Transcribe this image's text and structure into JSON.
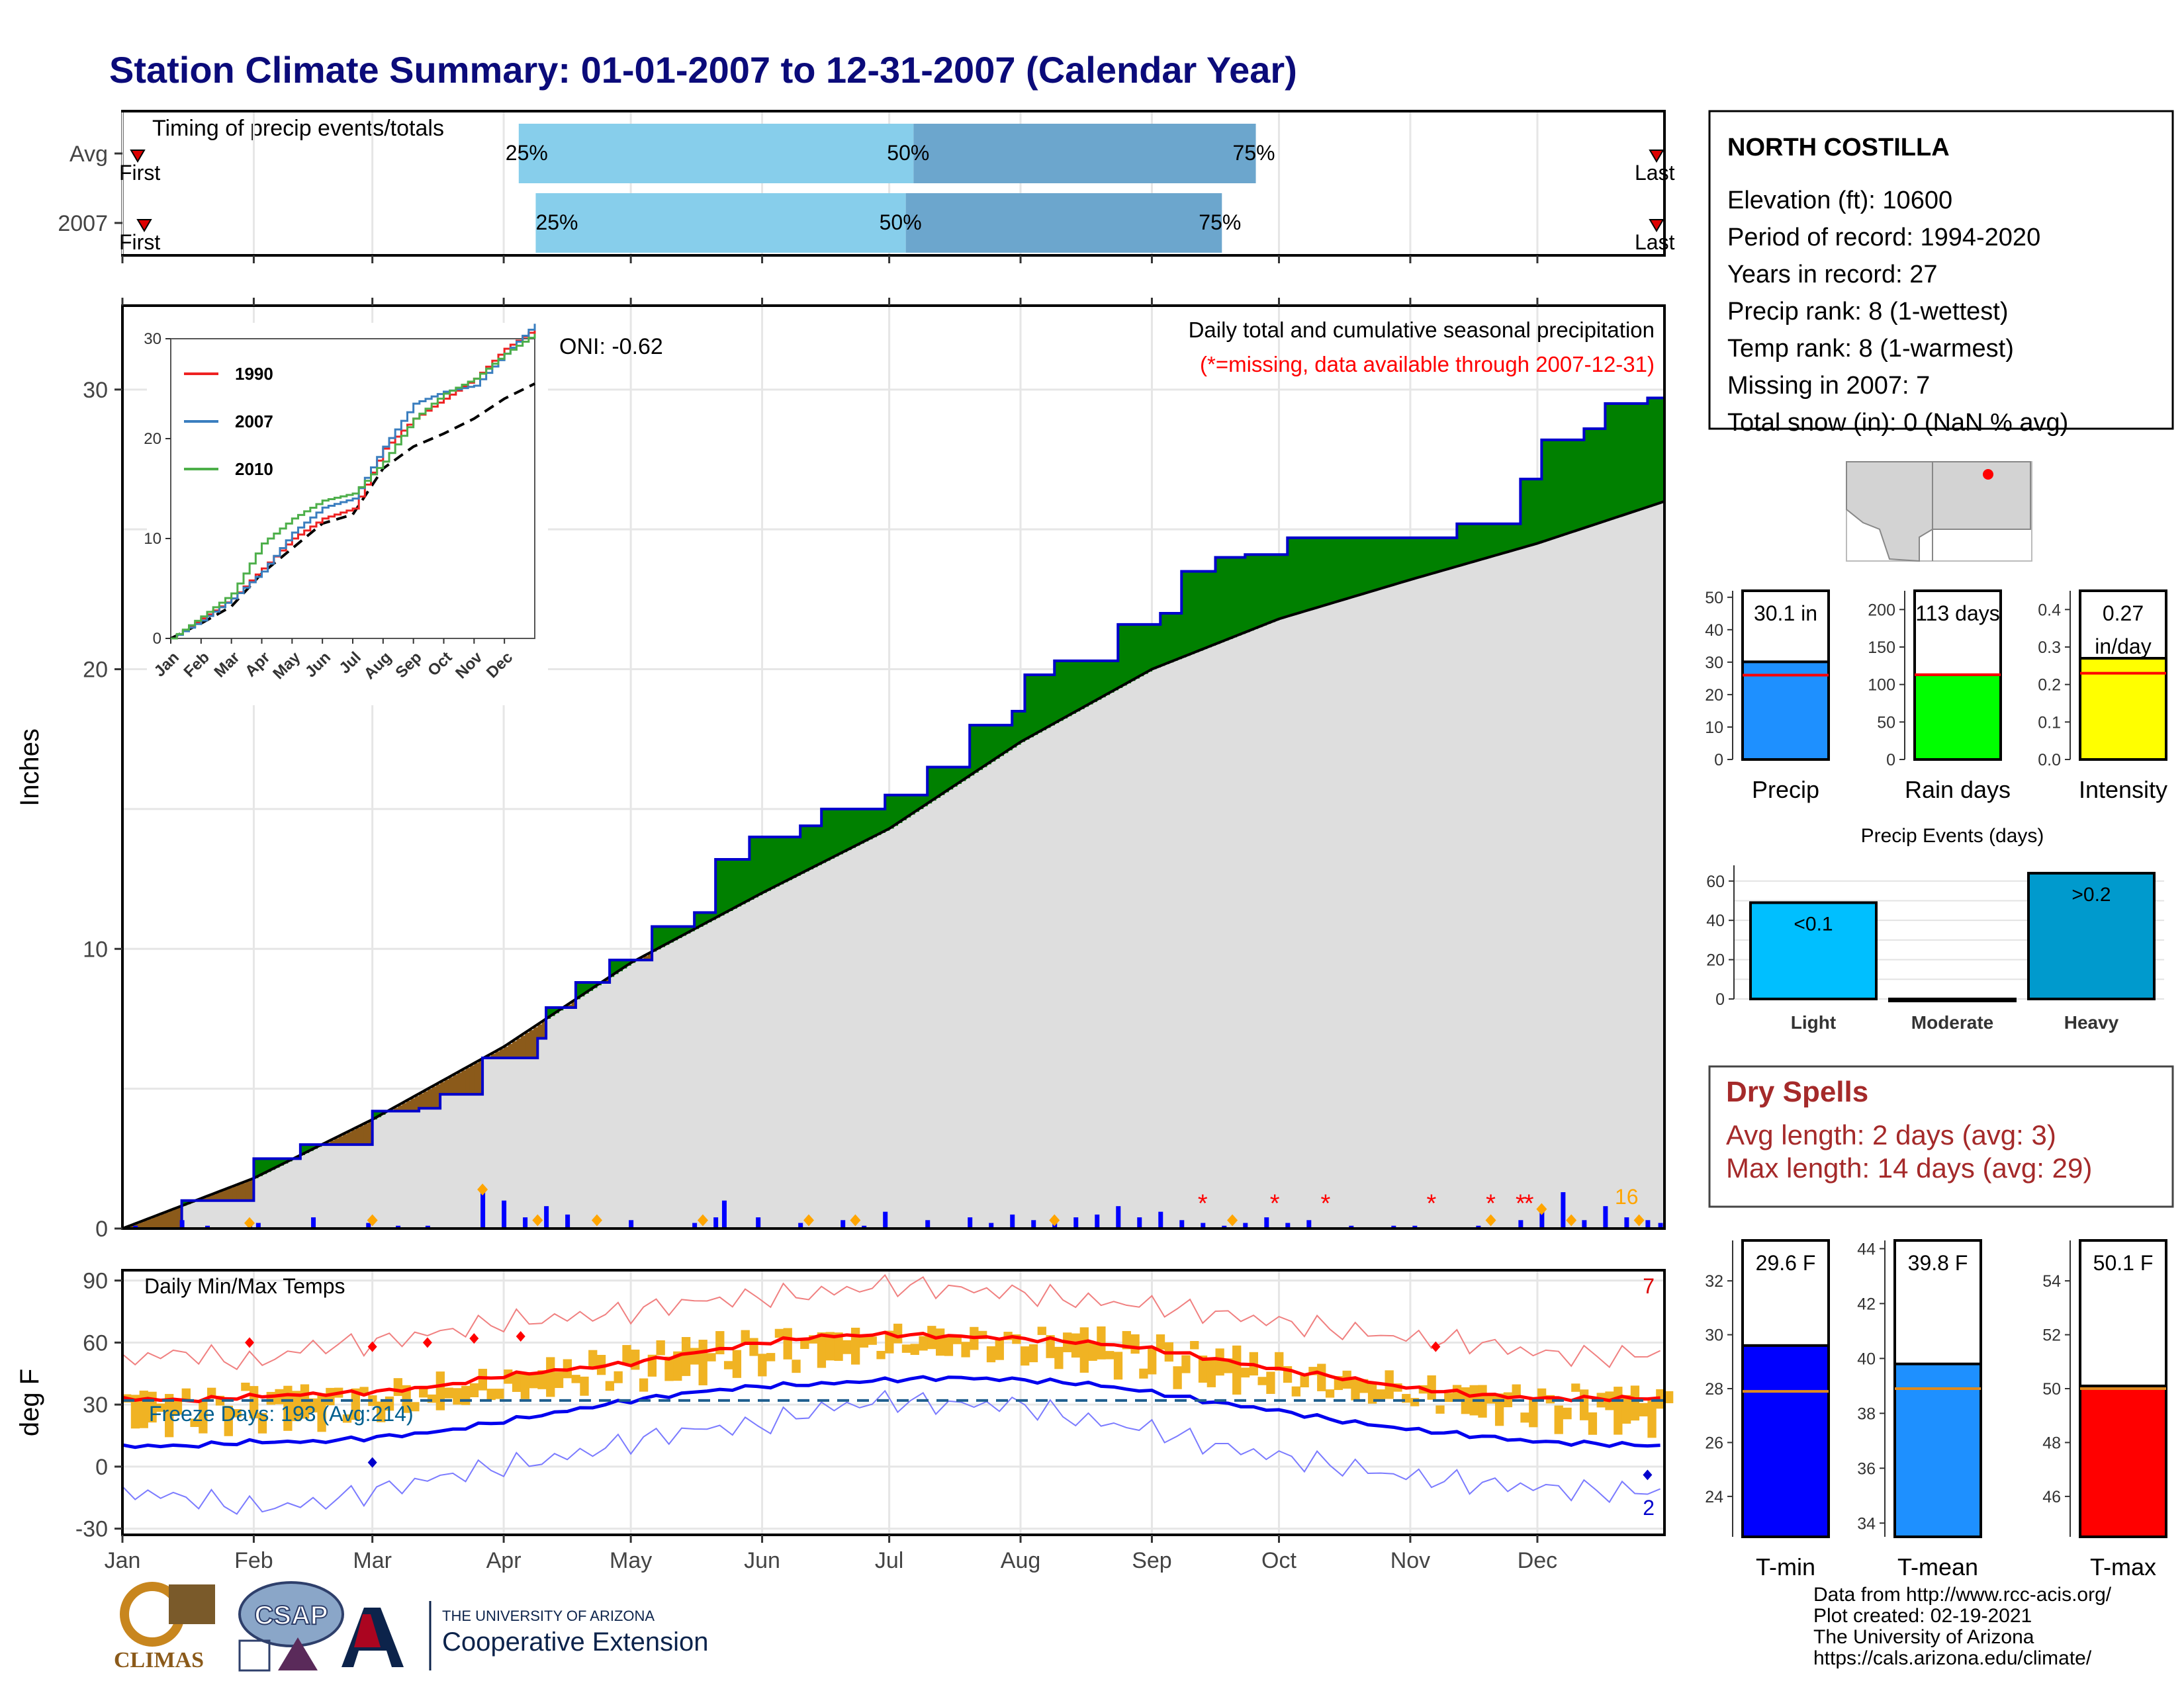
{
  "title": "Station Climate Summary: 01-01-2007 to 12-31-2007 (Calendar Year)",
  "timing": {
    "label": "Timing of precip events/totals",
    "rows": [
      {
        "name": "Avg",
        "first": "First",
        "last": "Last",
        "p25": 0.257,
        "p50": 0.513,
        "p75": 0.735
      },
      {
        "name": "2007",
        "first": "First",
        "last": "Last",
        "p25": 0.268,
        "p50": 0.508,
        "p75": 0.713
      }
    ],
    "p25_label": "25%",
    "p50_label": "50%",
    "p75_label": "75%"
  },
  "station": {
    "name": "NORTH COSTILLA",
    "lines": [
      "Elevation (ft): 10600",
      "Period of record: 1994-2020",
      "Years in record: 27",
      "Precip rank: 8 (1-wettest)",
      "Temp rank: 8 (1-warmest)",
      "Missing in 2007: 7",
      "Total snow (in): 0 (NaN % avg)"
    ]
  },
  "months": [
    "Jan",
    "Feb",
    "Mar",
    "Apr",
    "May",
    "Jun",
    "Jul",
    "Aug",
    "Sep",
    "Oct",
    "Nov",
    "Dec"
  ],
  "precip": {
    "ylabel": "Inches",
    "oni": "ONI: -0.62",
    "subtitle": "Daily total and cumulative seasonal precipitation",
    "missing_note": "(*=missing, data available through 2007-12-31)",
    "count_label": "16",
    "colors": {
      "above": "#008000",
      "below": "#8b5a1a",
      "normal": "#dedede",
      "cum_line": "#0000cc",
      "bars": "#0000ff",
      "markers": "#ffa500",
      "missing": "#ff0000"
    },
    "chart_data": {
      "type": "area",
      "x_doy": [
        0,
        14,
        31,
        42,
        59,
        70,
        75,
        85,
        98,
        100,
        107,
        115,
        125,
        135,
        140,
        148,
        160,
        165,
        180,
        190,
        200,
        210,
        213,
        220,
        235,
        245,
        250,
        258,
        265,
        275,
        290,
        300,
        315,
        330,
        335,
        345,
        350,
        360,
        364
      ],
      "cumulative_2007": [
        0,
        1.0,
        2.5,
        3.0,
        4.2,
        4.3,
        4.8,
        6.1,
        6.8,
        7.9,
        8.8,
        9.6,
        10.8,
        11.3,
        13.2,
        14.0,
        14.4,
        15.0,
        15.5,
        16.5,
        18.0,
        18.5,
        19.8,
        20.3,
        21.6,
        22.0,
        23.5,
        24.0,
        24.1,
        24.7,
        24.7,
        24.7,
        25.2,
        26.8,
        28.2,
        28.6,
        29.5,
        29.7,
        30.1
      ],
      "x_avg_doy": [
        0,
        31,
        59,
        90,
        120,
        151,
        181,
        212,
        243,
        273,
        304,
        334,
        364
      ],
      "cumulative_avg": [
        0,
        1.8,
        3.9,
        6.5,
        9.5,
        12.0,
        14.3,
        17.4,
        20.0,
        21.8,
        23.2,
        24.5,
        26.0
      ],
      "ylim": [
        0,
        33
      ],
      "yticks": [
        0,
        10,
        20,
        30
      ],
      "daily_doy": [
        3,
        14,
        20,
        30,
        32,
        45,
        58,
        65,
        72,
        85,
        90,
        95,
        100,
        105,
        120,
        135,
        140,
        142,
        150,
        160,
        170,
        175,
        180,
        190,
        200,
        205,
        210,
        215,
        220,
        225,
        230,
        235,
        240,
        245,
        250,
        255,
        260,
        265,
        270,
        275,
        280,
        290,
        300,
        305,
        320,
        330,
        335,
        340,
        345,
        350,
        355,
        360,
        363
      ],
      "daily_in": [
        0.1,
        0.3,
        0.1,
        0.1,
        0.2,
        0.4,
        0.2,
        0.1,
        0.1,
        1.3,
        1.0,
        0.4,
        0.8,
        0.5,
        0.3,
        0.2,
        0.4,
        1.0,
        0.4,
        0.2,
        0.3,
        0.1,
        0.6,
        0.3,
        0.4,
        0.2,
        0.5,
        0.3,
        0.2,
        0.4,
        0.5,
        0.8,
        0.4,
        0.6,
        0.3,
        0.2,
        0.1,
        0.2,
        0.4,
        0.2,
        0.3,
        0.1,
        0.1,
        0.1,
        0.1,
        0.3,
        0.6,
        1.3,
        0.3,
        0.8,
        0.4,
        0.3,
        0.2
      ],
      "marker_doy": [
        30,
        59,
        85,
        98,
        112,
        137,
        162,
        173,
        220,
        262,
        323,
        335,
        342,
        358
      ],
      "missing_doy": [
        255,
        272,
        284,
        309,
        323,
        330,
        332
      ],
      "inset": {
        "series": [
          {
            "name": "1990",
            "color": "#ee2222",
            "values": [
              0,
              2,
              4,
              7,
              10,
              12,
              13,
              19,
              22,
              24,
              26,
              29,
              31
            ]
          },
          {
            "name": "2007",
            "color": "#3a7ebf",
            "values": [
              0,
              1.8,
              4.0,
              6.7,
              10.6,
              13.1,
              14.0,
              19.2,
              23.5,
              24.7,
              25.3,
              28.5,
              32
            ]
          },
          {
            "name": "2010",
            "color": "#4daf4a",
            "values": [
              0,
              2.2,
              4.5,
              9.5,
              12.0,
              13.8,
              14.5,
              17.7,
              22.0,
              24.5,
              26.0,
              28.5,
              30.5
            ]
          }
        ],
        "avg": [
          0,
          1.5,
          3.2,
          6.5,
          9.0,
          11.5,
          12.4,
          17.0,
          19.2,
          20.5,
          22.0,
          24.0,
          25.5
        ],
        "yticks": [
          0,
          10,
          20,
          30
        ]
      }
    }
  },
  "temps": {
    "ylabel": "deg F",
    "label": "Daily Min/Max Temps",
    "freeze_label": "Freeze Days: 193 (Avg:214)",
    "count_max": "7",
    "count_min": "2",
    "chart_data": {
      "type": "line",
      "ylim": [
        -33,
        95
      ],
      "yticks": [
        -30,
        0,
        30,
        60,
        90
      ],
      "doy": [
        0,
        15,
        31,
        45,
        59,
        75,
        90,
        105,
        120,
        135,
        151,
        165,
        181,
        196,
        212,
        228,
        243,
        258,
        273,
        288,
        304,
        319,
        334,
        349,
        364
      ],
      "avg_max": [
        33,
        32,
        34,
        35,
        36,
        39,
        44,
        47,
        50,
        55,
        60,
        63,
        64,
        63,
        62,
        60,
        57,
        52,
        47,
        43,
        38,
        35,
        33,
        33,
        33
      ],
      "avg_min": [
        10,
        10,
        12,
        12,
        14,
        17,
        22,
        27,
        32,
        36,
        39,
        40,
        42,
        43,
        42,
        40,
        36,
        31,
        27,
        22,
        18,
        15,
        12,
        11,
        10
      ],
      "rec_max": [
        52,
        55,
        50,
        58,
        60,
        65,
        70,
        72,
        75,
        80,
        82,
        84,
        88,
        86,
        84,
        80,
        78,
        74,
        70,
        66,
        62,
        60,
        55,
        53,
        55
      ],
      "rec_min": [
        -12,
        -15,
        -20,
        -18,
        -12,
        -5,
        0,
        5,
        12,
        18,
        20,
        28,
        32,
        30,
        30,
        22,
        18,
        10,
        5,
        0,
        -5,
        -8,
        -10,
        -12,
        -12
      ],
      "freeze_line": 32
    }
  },
  "mini_precip": {
    "bars": [
      {
        "name": "Precip",
        "value_label": "30.1 in",
        "value": 30.1,
        "avg": 26.0,
        "ymax": 52,
        "yticks": [
          0,
          10,
          20,
          30,
          40,
          50
        ],
        "color": "#1e90ff"
      },
      {
        "name": "Rain days",
        "value_label": "113 days",
        "value": 113,
        "avg": 113,
        "ymax": 225,
        "yticks": [
          0,
          50,
          100,
          150,
          200
        ],
        "color": "#00ff00"
      },
      {
        "name": "Intensity",
        "value_label": "0.27 in/day",
        "value_l1": "0.27",
        "value_l2": "in/day",
        "value": 0.27,
        "avg": 0.23,
        "ymax": 0.45,
        "yticks": [
          0.0,
          0.1,
          0.2,
          0.3,
          0.4
        ],
        "tick_labels": [
          "0.0",
          "0.1",
          "0.2",
          "0.3",
          "0.4"
        ],
        "color": "#ffff00"
      }
    ]
  },
  "precip_events": {
    "title": "Precip Events (days)",
    "chart_data": {
      "type": "bar",
      "categories": [
        "Light",
        "Moderate",
        "Heavy"
      ],
      "values": [
        49,
        0,
        64
      ],
      "labels": [
        "<0.1",
        "",
        ">0.2"
      ],
      "colors": [
        "#00bfff",
        "#009acd",
        "#009acd"
      ],
      "yticks": [
        0,
        20,
        40,
        60
      ],
      "ylim": [
        0,
        68
      ]
    }
  },
  "dry_spells": {
    "title": "Dry Spells",
    "avg_line": "Avg length: 2 days (avg: 3)",
    "max_line": "Max length: 14 days (avg: 29)"
  },
  "mini_temps": {
    "bars": [
      {
        "name": "T-min",
        "value_label": "29.6 F",
        "value": 29.6,
        "avg": 27.9,
        "ymin": 22.5,
        "ymax": 33.5,
        "yticks": [
          24,
          26,
          28,
          30,
          32
        ],
        "color": "#0000ff"
      },
      {
        "name": "T-mean",
        "value_label": "39.8 F",
        "value": 39.8,
        "avg": 38.9,
        "ymin": 33.5,
        "ymax": 44.3,
        "yticks": [
          34,
          36,
          38,
          40,
          42,
          44
        ],
        "color": "#1e90ff"
      },
      {
        "name": "T-max",
        "value_label": "50.1 F",
        "value": 50.1,
        "avg": 50.0,
        "ymin": 44.5,
        "ymax": 55.5,
        "yticks": [
          46,
          48,
          50,
          52,
          54
        ],
        "color": "#ff0000"
      }
    ]
  },
  "credits": {
    "lines": [
      "Data from http://www.rcc-acis.org/",
      "Plot created: 02-19-2021",
      "The University of Arizona",
      "https://cals.arizona.edu/climate/"
    ],
    "climas": "CLIMAS",
    "csap": "CSAP",
    "ua_small": "THE UNIVERSITY OF ARIZONA",
    "ua_big": "Cooperative Extension"
  }
}
